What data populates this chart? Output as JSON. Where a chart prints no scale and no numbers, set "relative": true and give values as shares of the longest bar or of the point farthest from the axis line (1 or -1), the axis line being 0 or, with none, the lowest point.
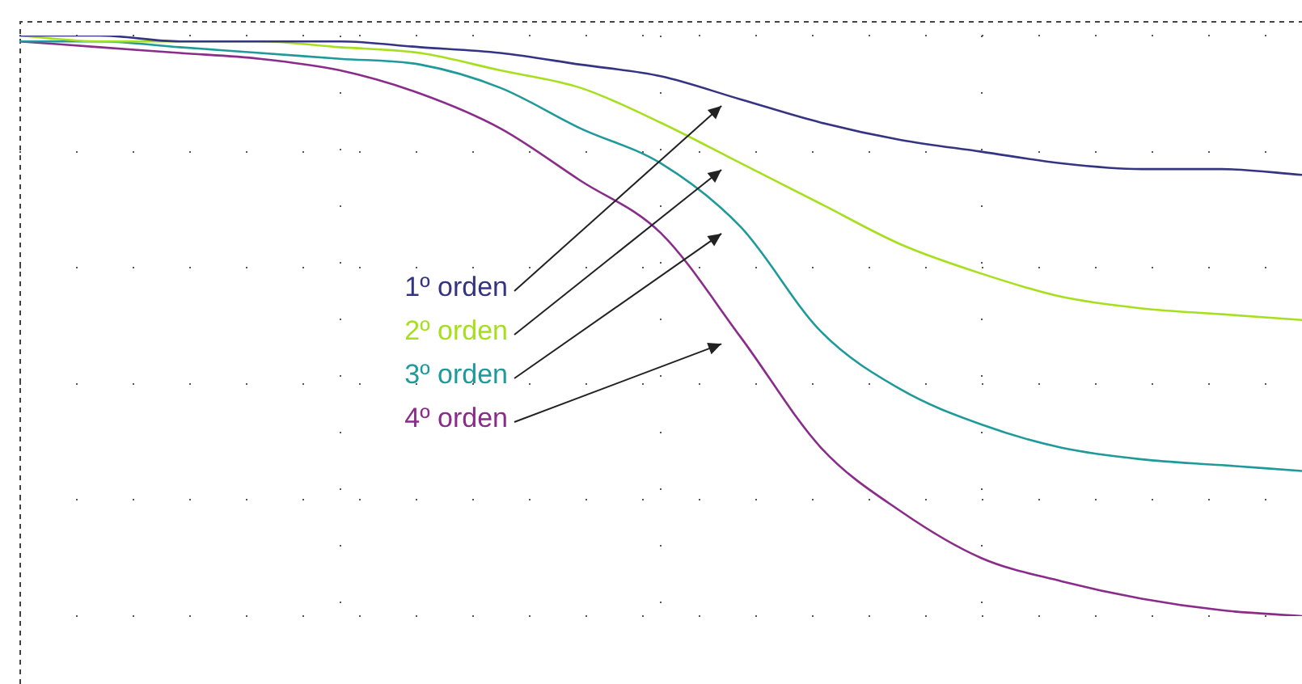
{
  "chart_data": {
    "type": "line",
    "relative": true,
    "grid": true,
    "legend": false,
    "marker": "none",
    "line_style": "solid",
    "categories": [
      null,
      null,
      null,
      null,
      null,
      null,
      null,
      null,
      null,
      null,
      null,
      null,
      null,
      null,
      null,
      null,
      null
    ],
    "series": [
      {
        "name": "1º orden",
        "color": "#343482",
        "values": [
          1.0,
          1.0,
          0.99,
          0.99,
          0.99,
          0.98,
          0.97,
          0.95,
          0.93,
          0.89,
          0.85,
          0.82,
          0.8,
          0.78,
          0.77,
          0.77,
          0.76
        ]
      },
      {
        "name": "2º orden",
        "color": "#a6e01c",
        "values": [
          1.0,
          0.99,
          0.99,
          0.99,
          0.98,
          0.97,
          0.94,
          0.91,
          0.85,
          0.78,
          0.71,
          0.64,
          0.59,
          0.55,
          0.53,
          0.52,
          0.51
        ]
      },
      {
        "name": "3º orden",
        "color": "#1f9a9a",
        "values": [
          0.99,
          0.99,
          0.98,
          0.97,
          0.96,
          0.95,
          0.91,
          0.84,
          0.78,
          0.67,
          0.49,
          0.39,
          0.33,
          0.29,
          0.27,
          0.26,
          0.25
        ]
      },
      {
        "name": "4º orden",
        "color": "#8a2c8a",
        "values": [
          0.99,
          0.98,
          0.97,
          0.96,
          0.94,
          0.9,
          0.84,
          0.75,
          0.66,
          0.48,
          0.29,
          0.18,
          0.1,
          0.06,
          0.03,
          0.01,
          0
        ]
      }
    ]
  }
}
